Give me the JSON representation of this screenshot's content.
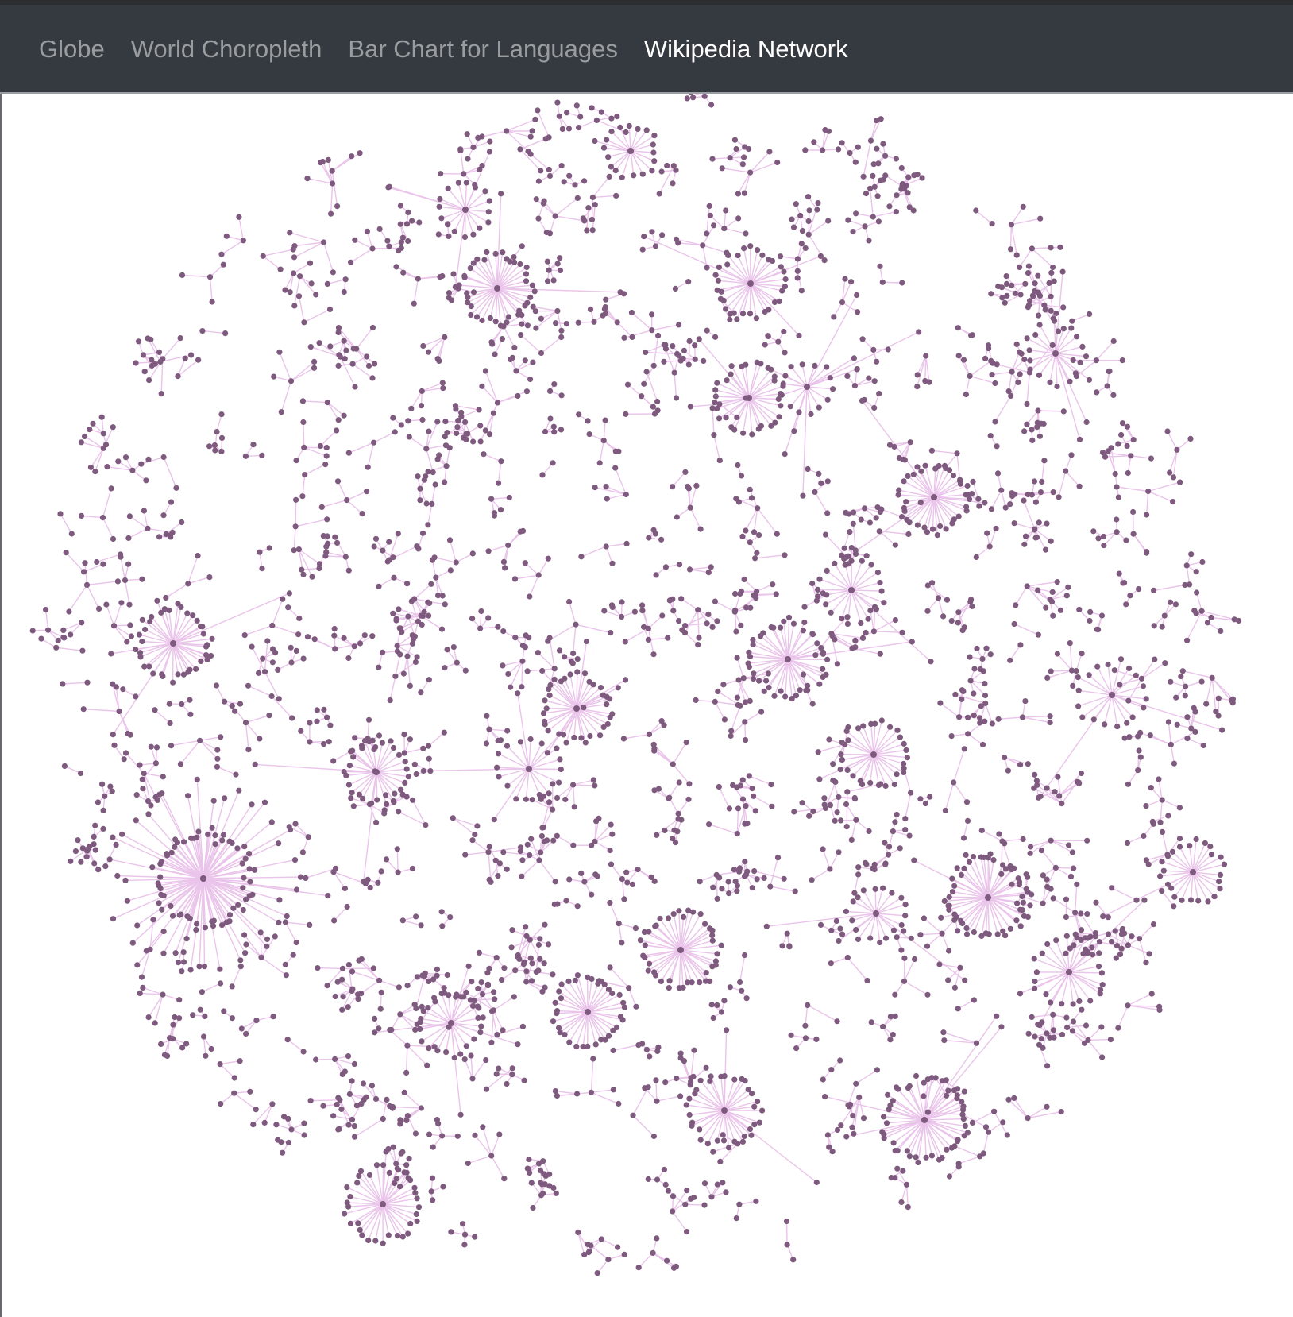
{
  "navbar": {
    "links": [
      {
        "label": "Globe",
        "active": false
      },
      {
        "label": "World Choropleth",
        "active": false
      },
      {
        "label": "Bar Chart for Languages",
        "active": false
      },
      {
        "label": "Wikipedia Network",
        "active": true
      }
    ]
  },
  "colors": {
    "navbar_background": "#343a40",
    "nav_link_inactive": "rgba(255,255,255,0.5)",
    "nav_link_active": "#ffffff",
    "node_fill": "#7e5a7e",
    "link_stroke": "#eac4ea"
  },
  "chart_data": {
    "type": "network",
    "layout": "force-directed",
    "node_color": "#7e5a7e",
    "link_color": "#eac4ea"
  }
}
